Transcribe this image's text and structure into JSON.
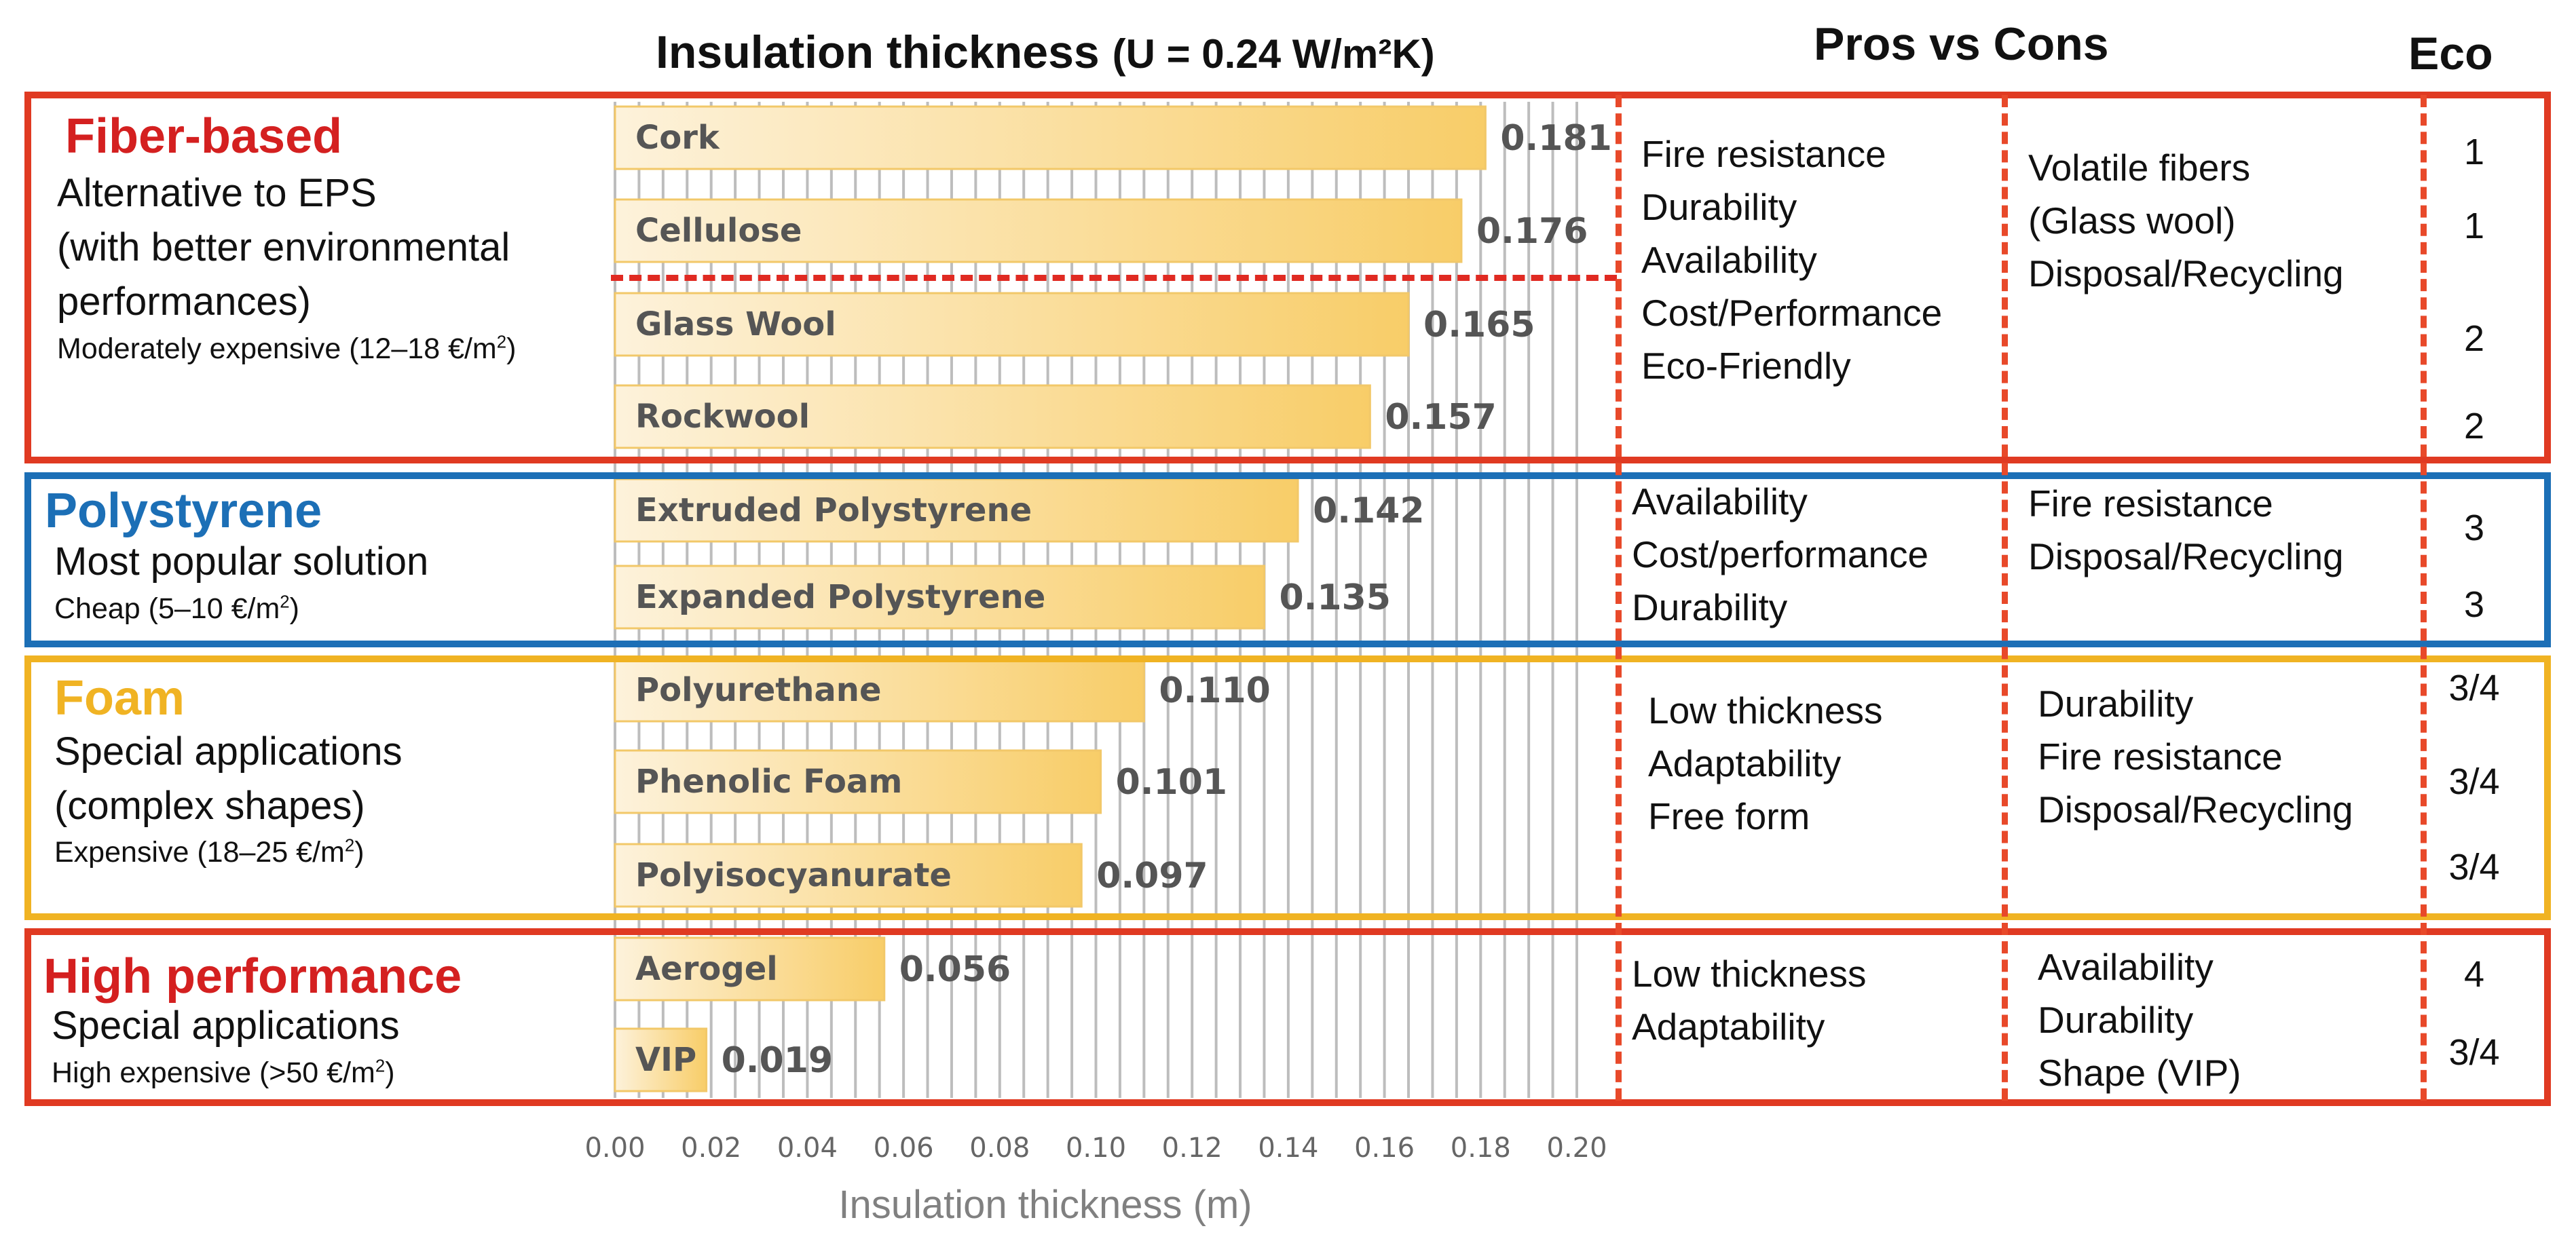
{
  "header": {
    "chart_title_main": "Insulation thickness",
    "chart_title_u": "(U = 0.24 W/m²K)",
    "pros_cons_title": "Pros vs Cons",
    "eco_title": "Eco"
  },
  "colors": {
    "fiber": "#e03a22",
    "fiber_title": "#d42020",
    "polystyrene": "#1c6fb6",
    "foam": "#f0b323",
    "high_perf": "#e03a22",
    "high_perf_title": "#d42020",
    "bar_start": "#fdf2db",
    "bar_end": "#f8cd68",
    "bar_edge": "#f2c869",
    "grid": "#bdbdbd"
  },
  "categories": [
    {
      "key": "fiber",
      "title": "Fiber-based",
      "description": "Alternative to EPS\n(with better environmental\nperformances)",
      "price_prefix": "Moderately expensive (12–18 €/m",
      "price_suffix": ")",
      "pros": "Fire resistance\nDurability\nAvailability\nCost/Performance\nEco-Friendly",
      "cons": "Volatile fibers\n(Glass wool)\nDisposal/Recycling",
      "eco": [
        "1",
        "1",
        "2",
        "2"
      ]
    },
    {
      "key": "polystyrene",
      "title": "Polystyrene",
      "description": "Most popular solution",
      "price_prefix": "Cheap (5–10 €/m",
      "price_suffix": ")",
      "pros": "Availability\nCost/performance\nDurability",
      "cons": "Fire resistance\nDisposal/Recycling",
      "eco": [
        "3",
        "3"
      ]
    },
    {
      "key": "foam",
      "title": "Foam",
      "description": "Special applications\n(complex shapes)",
      "price_prefix": "Expensive (18–25 €/m",
      "price_suffix": ")",
      "pros": "Low thickness\nAdaptability\nFree form",
      "cons": "Durability\nFire resistance\nDisposal/Recycling",
      "eco": [
        "3/4",
        "3/4",
        "3/4"
      ]
    },
    {
      "key": "high_perf",
      "title": "High performance",
      "description": "Special applications",
      "price_prefix": "High expensive (>50 €/m",
      "price_suffix": ")",
      "pros": "Low thickness\nAdaptability",
      "cons": "Availability\nDurability\nShape (VIP)",
      "eco": [
        "4",
        "3/4"
      ]
    }
  ],
  "chart_data": {
    "type": "bar",
    "orientation": "horizontal",
    "title": "Insulation thickness (U = 0.24 W/m²K)",
    "xlabel": "Insulation thickness (m)",
    "ylabel": "",
    "xlim": [
      0,
      0.2
    ],
    "xticks": [
      "0.00",
      "0.02",
      "0.04",
      "0.06",
      "0.08",
      "0.10",
      "0.12",
      "0.14",
      "0.16",
      "0.18",
      "0.20"
    ],
    "minor_gridline_step": 0.005,
    "categories": [
      "Cork",
      "Cellulose",
      "Glass Wool",
      "Rockwool",
      "Extruded Polystyrene",
      "Expanded Polystyrene",
      "Polyurethane",
      "Phenolic Foam",
      "Polyisocyanurate",
      "Aerogel",
      "VIP"
    ],
    "values": [
      0.181,
      0.176,
      0.165,
      0.157,
      0.142,
      0.135,
      0.11,
      0.101,
      0.097,
      0.056,
      0.019
    ],
    "value_labels": [
      "0.181",
      "0.176",
      "0.165",
      "0.157",
      "0.142",
      "0.135",
      "0.110",
      "0.101",
      "0.097",
      "0.056",
      "0.019"
    ]
  }
}
